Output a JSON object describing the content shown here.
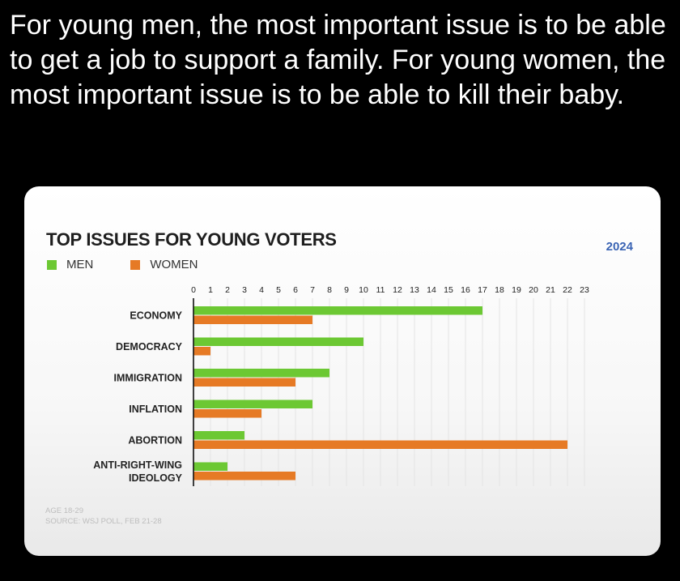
{
  "post": {
    "text": "For young men, the most important issue is to be able to get a job to support a family. For young women, the most important issue is to be able to kill their baby."
  },
  "badge": "2024",
  "footnote": {
    "line1": "AGE 18-29",
    "line2": "SOURCE: WSJ POLL, FEB 21-28"
  },
  "colors": {
    "men": "#6cc833",
    "women": "#e67a25",
    "grid": "#e4e4e4",
    "axis": "#111111"
  },
  "chart_data": {
    "type": "bar",
    "orientation": "horizontal",
    "title": "TOP ISSUES FOR YOUNG VOTERS",
    "xlabel": "",
    "ylabel": "",
    "categories": [
      "ECONOMY",
      "DEMOCRACY",
      "IMMIGRATION",
      "INFLATION",
      "ABORTION",
      "ANTI-RIGHT-WING IDEOLOGY"
    ],
    "series": [
      {
        "name": "MEN",
        "values": [
          17,
          10,
          8,
          7,
          3,
          2
        ]
      },
      {
        "name": "WOMEN",
        "values": [
          7,
          1,
          6,
          4,
          22,
          6
        ]
      }
    ],
    "xlim": [
      0,
      23
    ],
    "xticks": [
      "0",
      "1",
      "2",
      "3",
      "4",
      "5",
      "6",
      "7",
      "8",
      "9",
      "10",
      "11",
      "12",
      "13",
      "14",
      "15",
      "16",
      "17",
      "18",
      "19",
      "20",
      "21",
      "22",
      "23"
    ],
    "grid": true,
    "legend_position": "top-left"
  }
}
